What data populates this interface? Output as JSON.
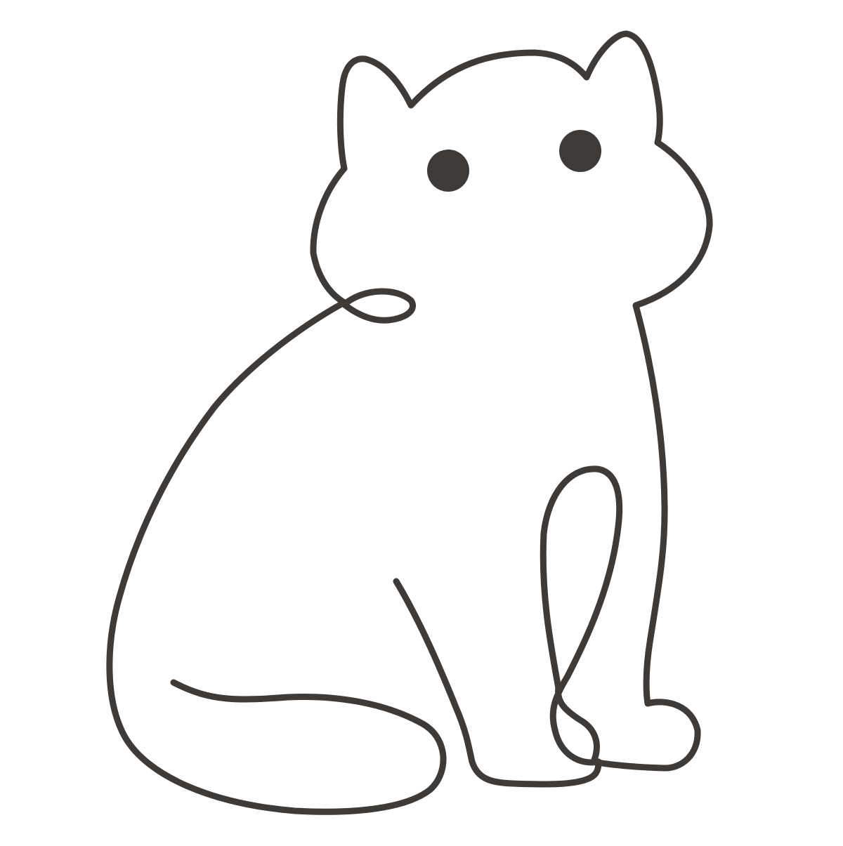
{
  "illustration": {
    "subject": "cat-line-art",
    "colors": {
      "background": "#ffffff",
      "line": "#3d3a38",
      "eye": "#3d3a38"
    }
  }
}
